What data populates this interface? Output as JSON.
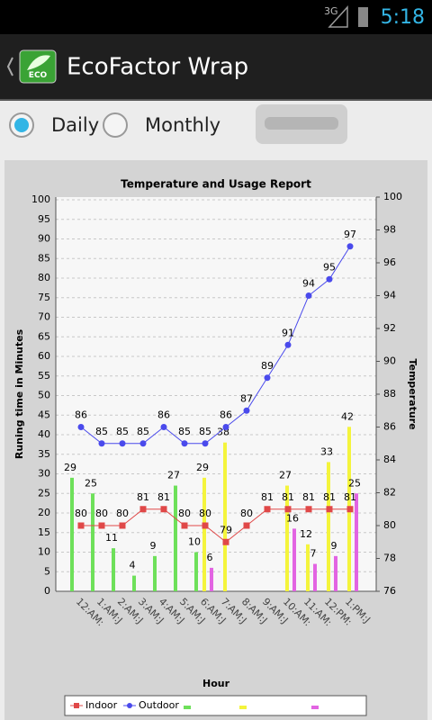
{
  "status_bar": {
    "network": "3G",
    "time": "5:18"
  },
  "app_bar": {
    "logo_text": "ECO",
    "title": "EcoFactor Wrap"
  },
  "options": [
    {
      "label": "Daily",
      "selected": true
    },
    {
      "label": "Monthly",
      "selected": false
    }
  ],
  "chart_data": {
    "type": "bar-line",
    "title": "Temperature and Usage Report",
    "x_label": "Hour",
    "y_label": "Runing time in Minutes",
    "y2_label": "Temperature",
    "categories": [
      "12:AM:",
      "1:AM:J",
      "2:AM:J",
      "3:AM:J",
      "4:AM:J",
      "5:AM:J",
      "6:AM:J",
      "7:AM:J",
      "8:AM:J",
      "9:AM:J",
      "10:AM:",
      "11:AM:",
      "12:PM:",
      "1:PM:J"
    ],
    "ylim": [
      0,
      100
    ],
    "yticks": [
      0,
      5,
      10,
      15,
      20,
      25,
      30,
      35,
      40,
      45,
      50,
      55,
      60,
      65,
      70,
      75,
      80,
      85,
      90,
      95,
      100
    ],
    "y2lim": [
      76,
      100
    ],
    "y2ticks": [
      76,
      78,
      80,
      82,
      84,
      86,
      88,
      90,
      92,
      94,
      96,
      98,
      100
    ],
    "grid": true,
    "series": [
      {
        "name": "Indoor",
        "type": "line",
        "marker": "square",
        "axis": "y2",
        "color": "#e04848",
        "values": [
          80,
          80,
          80,
          81,
          81,
          80,
          80,
          79,
          80,
          81,
          81,
          81,
          81,
          81
        ]
      },
      {
        "name": "Outdoor",
        "type": "line",
        "marker": "circle",
        "axis": "y2",
        "color": "#4a4aec",
        "values": [
          86,
          85,
          85,
          85,
          86,
          85,
          85,
          86,
          87,
          89,
          91,
          94,
          95,
          97
        ]
      },
      {
        "type": "bar",
        "color": "#6ee05a",
        "values": [
          29,
          25,
          11,
          4,
          9,
          27,
          10,
          null,
          null,
          null,
          null,
          null,
          null,
          null
        ]
      },
      {
        "type": "bar",
        "color": "#f4f43c",
        "values": [
          null,
          null,
          null,
          null,
          null,
          null,
          29,
          38,
          null,
          null,
          27,
          12,
          33,
          42
        ]
      },
      {
        "type": "bar",
        "color": "#e264e2",
        "values": [
          null,
          null,
          null,
          null,
          null,
          null,
          6,
          null,
          null,
          null,
          16,
          7,
          9,
          25
        ]
      }
    ]
  }
}
